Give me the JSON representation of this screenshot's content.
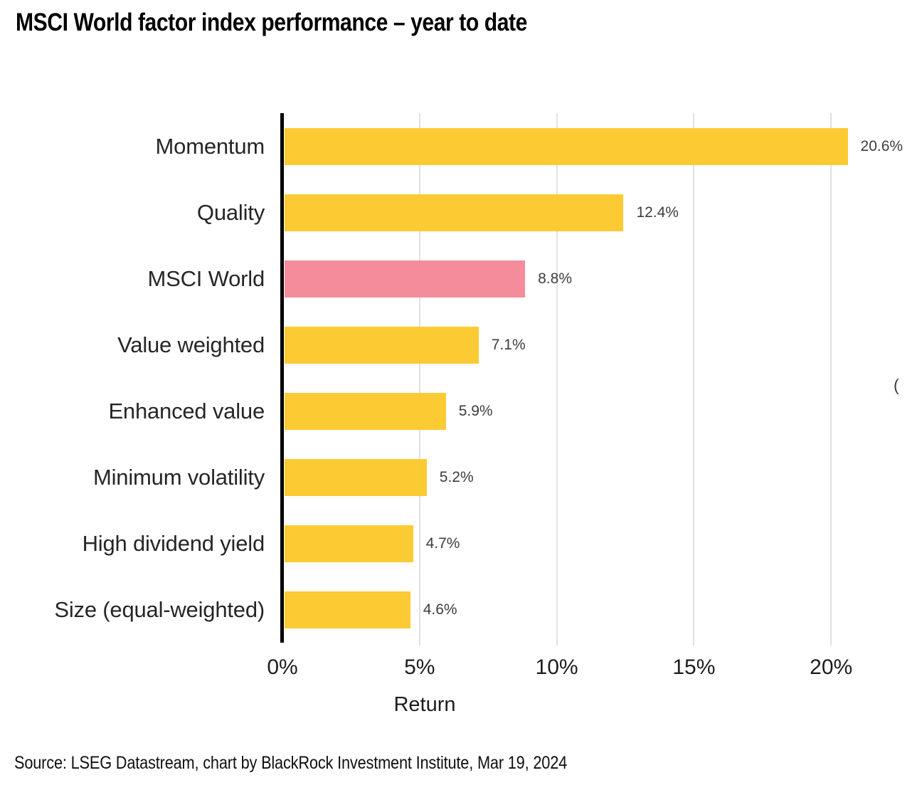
{
  "title": "MSCI World factor index performance – year to date",
  "source_note": "Source: LSEG Datastream, chart by BlackRock Investment Institute, Mar 19, 2024",
  "clipped_edge_text": "(",
  "chart_data": {
    "type": "bar",
    "orientation": "horizontal",
    "title": "MSCI World factor index performance – year to date",
    "categories": [
      "Momentum",
      "Quality",
      "MSCI World",
      "Value weighted",
      "Enhanced value",
      "Minimum volatility",
      "High dividend yield",
      "Size (equal-weighted)"
    ],
    "values": [
      20.6,
      12.4,
      8.8,
      7.1,
      5.9,
      5.2,
      4.7,
      4.6
    ],
    "value_labels": [
      "20.6%",
      "12.4%",
      "8.8%",
      "7.1%",
      "5.9%",
      "5.2%",
      "4.7%",
      "4.6%"
    ],
    "highlight_index": 2,
    "bar_color": "#FCCB33",
    "highlight_color": "#F48C9B",
    "xlabel": "Return",
    "x_ticks": [
      0,
      5,
      10,
      15,
      20
    ],
    "x_tick_labels": [
      "0%",
      "5%",
      "10%",
      "15%",
      "20%"
    ],
    "xlim": [
      0,
      22.2
    ],
    "grid": true,
    "gridline_color": "#E1E1E1",
    "axis_color": "#000000",
    "legend": false
  }
}
